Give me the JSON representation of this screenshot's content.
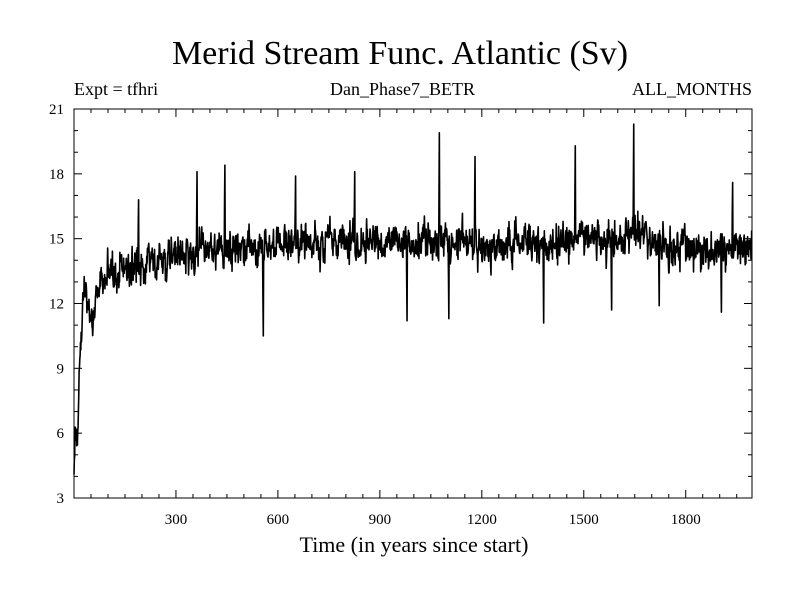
{
  "chart_data": {
    "type": "line",
    "title": "Merid Stream Func. Atlantic (Sv)",
    "subtitle_left": "Expt = tfhri",
    "subtitle_center": "Dan_Phase7_BETR",
    "subtitle_right": "ALL_MONTHS",
    "xlabel": "Time (in years since start)",
    "ylabel": "",
    "xlim": [
      0,
      1995
    ],
    "ylim": [
      3,
      21
    ],
    "xticks": [
      300,
      600,
      900,
      1200,
      1500,
      1800
    ],
    "yticks": [
      3,
      6,
      9,
      12,
      15,
      18,
      21
    ],
    "grid": false,
    "series": [
      {
        "name": "Merid Stream Func. Atlantic",
        "x_start": 0,
        "x_step": 1,
        "n_points": 1995,
        "anchors_x": [
          0,
          3,
          6,
          9,
          12,
          15,
          18,
          22,
          26,
          30,
          38,
          45,
          52,
          60,
          70,
          80,
          90,
          100,
          120,
          150,
          200,
          250,
          300,
          350,
          400,
          450,
          500,
          550,
          600,
          650,
          700,
          750,
          800,
          850,
          900,
          950,
          1000,
          1050,
          1100,
          1150,
          1200,
          1250,
          1300,
          1350,
          1400,
          1450,
          1500,
          1550,
          1600,
          1650,
          1700,
          1750,
          1800,
          1850,
          1900,
          1950,
          1995
        ],
        "anchors_mean": [
          4.2,
          5.5,
          6.0,
          5.4,
          6.3,
          8.5,
          9.4,
          10.5,
          12.5,
          12.7,
          12.4,
          11.6,
          11.2,
          11.4,
          12.4,
          13.0,
          13.1,
          13.2,
          13.4,
          13.7,
          13.9,
          14.1,
          14.2,
          14.4,
          14.5,
          14.4,
          14.6,
          14.5,
          14.6,
          14.8,
          14.7,
          14.9,
          14.8,
          14.7,
          14.9,
          14.8,
          14.7,
          15.0,
          14.9,
          14.8,
          14.7,
          14.8,
          14.9,
          14.8,
          14.6,
          14.9,
          15.2,
          15.0,
          14.8,
          15.3,
          14.9,
          14.6,
          14.6,
          14.5,
          14.6,
          14.7,
          14.5
        ],
        "noise_amplitude": 0.95,
        "extremes": [
          {
            "x": 190,
            "y": 16.8
          },
          {
            "x": 362,
            "y": 18.1
          },
          {
            "x": 444,
            "y": 18.4
          },
          {
            "x": 557,
            "y": 10.5
          },
          {
            "x": 652,
            "y": 17.9
          },
          {
            "x": 826,
            "y": 18.1
          },
          {
            "x": 980,
            "y": 11.2
          },
          {
            "x": 1075,
            "y": 19.9
          },
          {
            "x": 1103,
            "y": 11.3
          },
          {
            "x": 1180,
            "y": 18.8
          },
          {
            "x": 1382,
            "y": 11.1
          },
          {
            "x": 1475,
            "y": 19.3
          },
          {
            "x": 1582,
            "y": 11.7
          },
          {
            "x": 1647,
            "y": 20.3
          },
          {
            "x": 1722,
            "y": 11.9
          },
          {
            "x": 1905,
            "y": 11.6
          },
          {
            "x": 1938,
            "y": 17.6
          }
        ]
      }
    ]
  }
}
